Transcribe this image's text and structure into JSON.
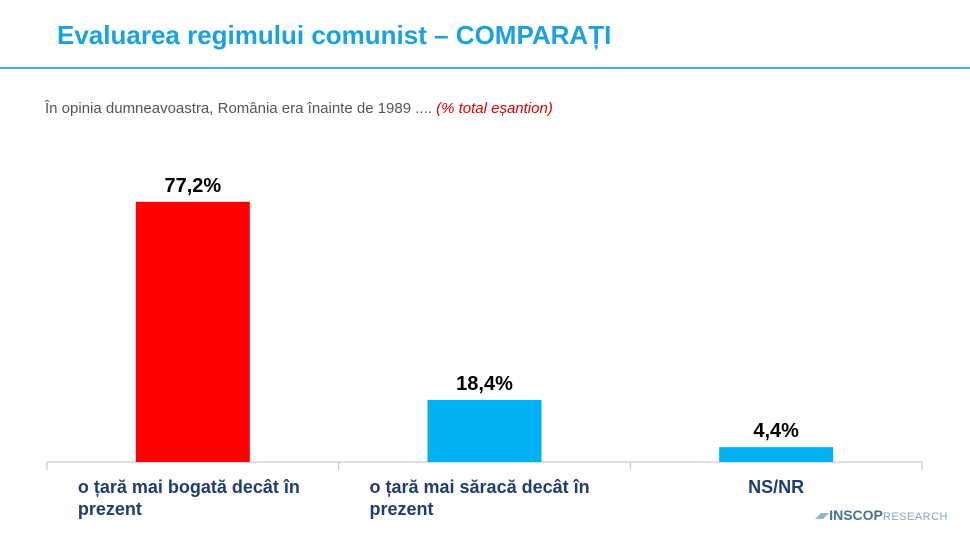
{
  "chart_data": {
    "type": "bar",
    "title": "Evaluarea regimului comunist – COMPARAȚI",
    "subtitle": "În opinia dumneavoastra, România era înainte de 1989 ....",
    "subtitle_note": "(% total eșantion)",
    "categories": [
      "o țară mai bogată decât în prezent",
      "o țară mai săracă decât în prezent",
      "NS/NR"
    ],
    "values": [
      77.2,
      18.4,
      4.4
    ],
    "value_labels": [
      "77,2%",
      "18,4%",
      "4,4%"
    ],
    "colors": [
      "#ff0000",
      "#00b0f0",
      "#00b0f0"
    ]
  },
  "logo": {
    "brand": "INSCOP",
    "suffix": "RESEARCH"
  }
}
